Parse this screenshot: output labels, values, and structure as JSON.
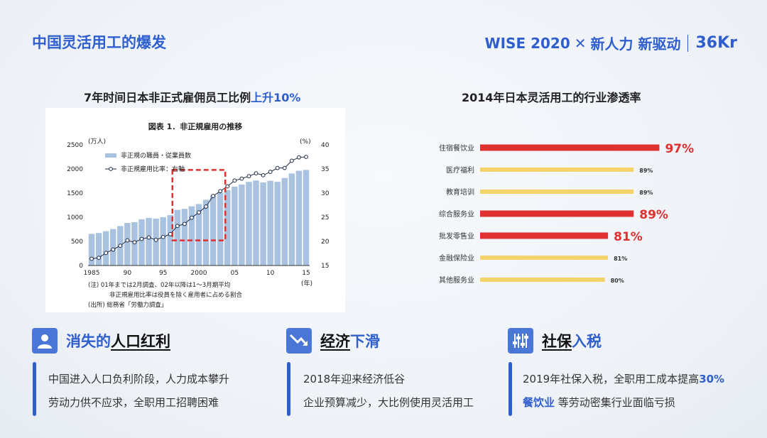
{
  "header": {
    "title": "中国灵活用工的爆发",
    "brand_event": "WISE 2020",
    "brand_cross": "✕",
    "brand_slogan": "新人力 新驱动",
    "brand_logo": "36Kr"
  },
  "left_panel": {
    "title_main": "7年时间日本非正式雇佣员工比例",
    "title_highlight": "上升10%",
    "figure_title": "図表 1．非正規雇用の推移",
    "left_unit": "(万人)",
    "right_unit": "(%)",
    "legend_bar": "非正規の職員・従業員数",
    "legend_line": "非正規雇用比率：右軸",
    "note1": "(注) 01年までは2月調査、02年以降は1～3月期平均",
    "note2": "非正規雇用比率は役員を除く雇用者に占める割合",
    "note3": "(出所) 総務省「労働力調査」",
    "year_unit": "(年)"
  },
  "right_panel": {
    "title": "2014年日本灵活用工的行业渗透率"
  },
  "chart_data": [
    {
      "type": "bar",
      "title": "図表 1．非正規雇用の推移",
      "xlabel": "(年)",
      "ylabel": "(万人)",
      "y2label": "(%)",
      "x_ticks": [
        "1985",
        "90",
        "95",
        "2000",
        "05",
        "10",
        "15"
      ],
      "y_ticks": [
        0,
        500,
        1000,
        1500,
        2000,
        2500
      ],
      "y2_ticks": [
        15,
        20,
        25,
        30,
        35,
        40
      ],
      "ylim": [
        0,
        2500
      ],
      "y2lim": [
        15,
        40
      ],
      "highlight_range": [
        "1997",
        "2003"
      ],
      "x": [
        1985,
        1986,
        1987,
        1988,
        1989,
        1990,
        1991,
        1992,
        1993,
        1994,
        1995,
        1996,
        1997,
        1998,
        1999,
        2000,
        2001,
        2002,
        2003,
        2004,
        2005,
        2006,
        2007,
        2008,
        2009,
        2010,
        2011,
        2012,
        2013,
        2014,
        2015
      ],
      "series": [
        {
          "name": "非正規の職員・従業員数",
          "kind": "bar",
          "values": [
            655,
            673,
            711,
            755,
            817,
            881,
            897,
            958,
            986,
            971,
            1001,
            1043,
            1152,
            1173,
            1225,
            1273,
            1360,
            1451,
            1504,
            1564,
            1633,
            1677,
            1732,
            1760,
            1721,
            1755,
            1733,
            1813,
            1906,
            1962,
            1980
          ]
        },
        {
          "name": "非正規雇用比率：右軸",
          "kind": "line",
          "axis": "right",
          "values": [
            16.4,
            16.6,
            17.6,
            18.3,
            19.1,
            20.2,
            19.8,
            20.5,
            20.8,
            20.3,
            20.9,
            21.5,
            23.2,
            23.6,
            24.9,
            26.0,
            27.2,
            29.4,
            30.4,
            31.4,
            32.6,
            33.0,
            33.5,
            34.1,
            33.7,
            34.4,
            35.2,
            35.2,
            36.7,
            37.4,
            37.5
          ]
        }
      ]
    },
    {
      "type": "bar",
      "orientation": "horizontal",
      "title": "2014年日本灵活用工的行业渗透率",
      "categories": [
        "住宿餐饮业",
        "医疗福利",
        "教育培训",
        "综合服务业",
        "批发零售业",
        "金融保险业",
        "其他服务业"
      ],
      "values": [
        97,
        89,
        89,
        89,
        81,
        81,
        80
      ],
      "value_labels": [
        "97%",
        "89%",
        "89%",
        "89%",
        "81%",
        "81%",
        "80%"
      ],
      "emphasized": [
        true,
        false,
        false,
        true,
        true,
        false,
        false
      ],
      "colors": {
        "emphasized": "#e03030",
        "normal": "#f4d36b"
      }
    }
  ],
  "sections": [
    {
      "title_blue": "消失的",
      "title_black": "人口红利",
      "icon": "user-icon",
      "lines": [
        "中国进入人口负利阶段，人力成本攀升",
        "劳动力供不应求，全职用工招聘困难"
      ]
    },
    {
      "title_black": "经济",
      "title_blue": "下滑",
      "icon": "trend-down-icon",
      "lines": [
        "2018年迎来经济低谷",
        "企业预算减少，大比例使用灵活用工"
      ]
    },
    {
      "title_black": "社保",
      "title_blue": "入税",
      "icon": "sliders-icon",
      "line1_pre": "2019年社保入税，全职用工成本提高",
      "line1_hl": "30%",
      "line2_hl": "餐饮业",
      "line2_post": " 等劳动密集行业面临亏损"
    }
  ],
  "colors": {
    "accent": "#2f5fcf",
    "red": "#e03030",
    "yellow": "#f4d36b",
    "bar_blue": "#a9c2e0"
  }
}
